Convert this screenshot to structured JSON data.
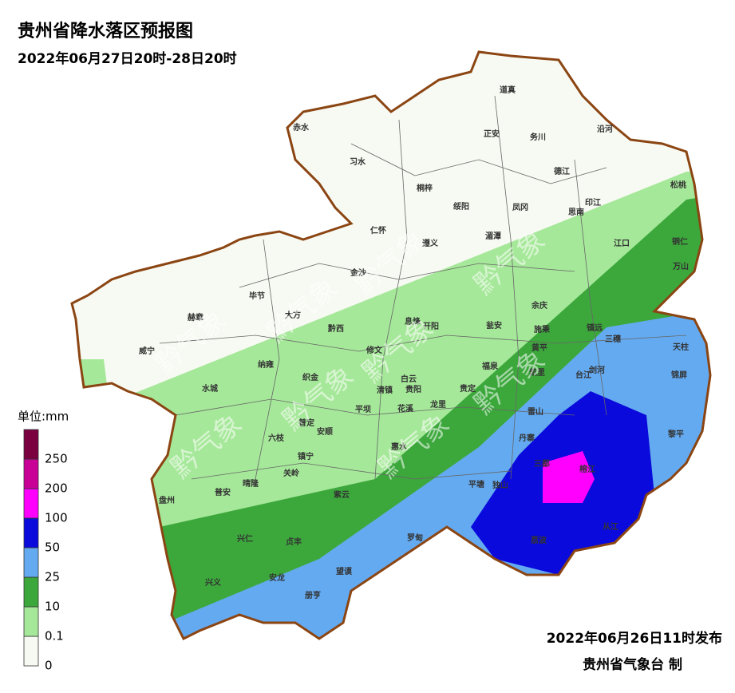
{
  "title": "贵州省降水落区预报图",
  "subtitle": "2022年06月27日20时-28日20时",
  "watermark": "黔气象",
  "legend": {
    "unit": "单位:mm",
    "levels": [
      0,
      0.1,
      10,
      25,
      50,
      100,
      200,
      250
    ],
    "colors": [
      "#f7faf2",
      "#a6e89a",
      "#3ca83c",
      "#64aaf0",
      "#0a0adc",
      "#ff00ff",
      "#c80096",
      "#7a0040"
    ]
  },
  "issued": "2022年06月26日11时发布",
  "producer": "贵州省气象台 制",
  "counties": [
    "道真",
    "赤水",
    "正安",
    "务川",
    "沿河",
    "习水",
    "德江",
    "松桃",
    "桐梓",
    "绥阳",
    "凤冈",
    "印江",
    "思南",
    "仁怀",
    "湄潭",
    "遵义",
    "江口",
    "铜仁",
    "余庆",
    "万山",
    "毕节",
    "大方",
    "金沙",
    "赫章",
    "息烽",
    "瓮安",
    "镇远",
    "三穗",
    "天柱",
    "威宁",
    "黔西",
    "纳雍",
    "开阳",
    "施秉",
    "黄平",
    "锦屏",
    "织金",
    "修文",
    "台江",
    "剑河",
    "水城",
    "白云",
    "清镇",
    "贵阳",
    "平坝",
    "花溪",
    "福泉",
    "凯里",
    "龙里",
    "贵定",
    "雷山",
    "黎平",
    "普定",
    "安顺",
    "丹寨",
    "六枝",
    "镇宁",
    "惠水",
    "关岭",
    "三都",
    "榕江",
    "盘州",
    "普安",
    "晴隆",
    "紫云",
    "平塘",
    "独山",
    "兴仁",
    "贞丰",
    "罗甸",
    "荔波",
    "从江",
    "兴义",
    "安龙",
    "望谟",
    "册亨"
  ]
}
